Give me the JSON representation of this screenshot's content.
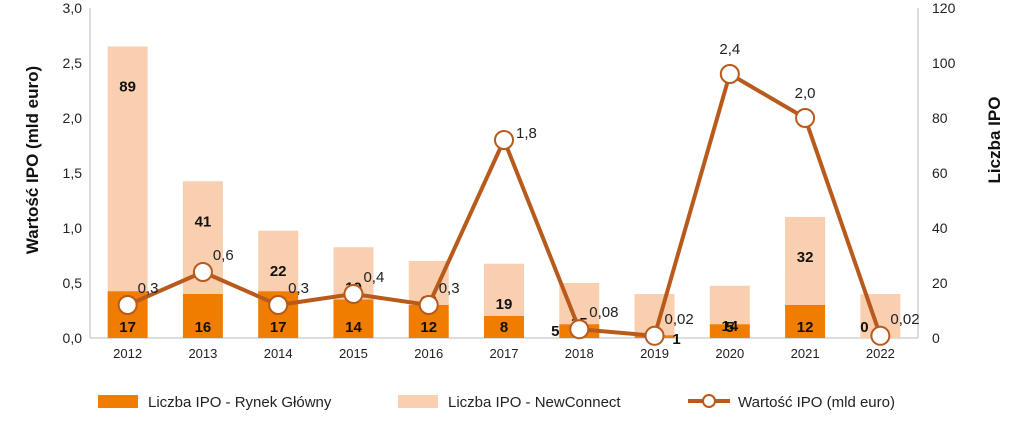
{
  "chart_data": {
    "type": "bar",
    "categories": [
      "2012",
      "2013",
      "2014",
      "2015",
      "2016",
      "2017",
      "2018",
      "2019",
      "2020",
      "2021",
      "2022"
    ],
    "series": [
      {
        "name": "Liczba IPO - Rynek Główny",
        "type": "bar",
        "axis": "right",
        "color": "#F07D00",
        "values": [
          17,
          16,
          17,
          14,
          12,
          8,
          5,
          1,
          5,
          12,
          0
        ]
      },
      {
        "name": "Liczba IPO - NewConnect",
        "type": "bar",
        "axis": "right",
        "color": "#F9CFB0",
        "values": [
          89,
          41,
          22,
          19,
          16,
          19,
          15,
          15,
          14,
          32,
          16
        ]
      },
      {
        "name": "Wartość IPO (mld euro)",
        "type": "line",
        "axis": "left",
        "color": "#B85A1C",
        "values": [
          0.3,
          0.6,
          0.3,
          0.4,
          0.3,
          1.8,
          0.08,
          0.02,
          2.4,
          2.0,
          0.02
        ],
        "labels": [
          "0,3",
          "0,6",
          "0,3",
          "0,4",
          "0,3",
          "1,8",
          "0,08",
          "0,02",
          "2,4",
          "2,0",
          "0,02"
        ]
      }
    ],
    "stacked": true,
    "ylabel": "Wartość IPO (mld euro)",
    "y2label": "Liczba IPO",
    "ylim": [
      0,
      3.0
    ],
    "y2lim": [
      0,
      120
    ],
    "yticks": [
      "0,0",
      "0,5",
      "1,0",
      "1,5",
      "2,0",
      "2,5",
      "3,0"
    ],
    "y2ticks": [
      "0",
      "20",
      "40",
      "60",
      "80",
      "100",
      "120"
    ],
    "legend_position": "bottom",
    "grid": false
  }
}
